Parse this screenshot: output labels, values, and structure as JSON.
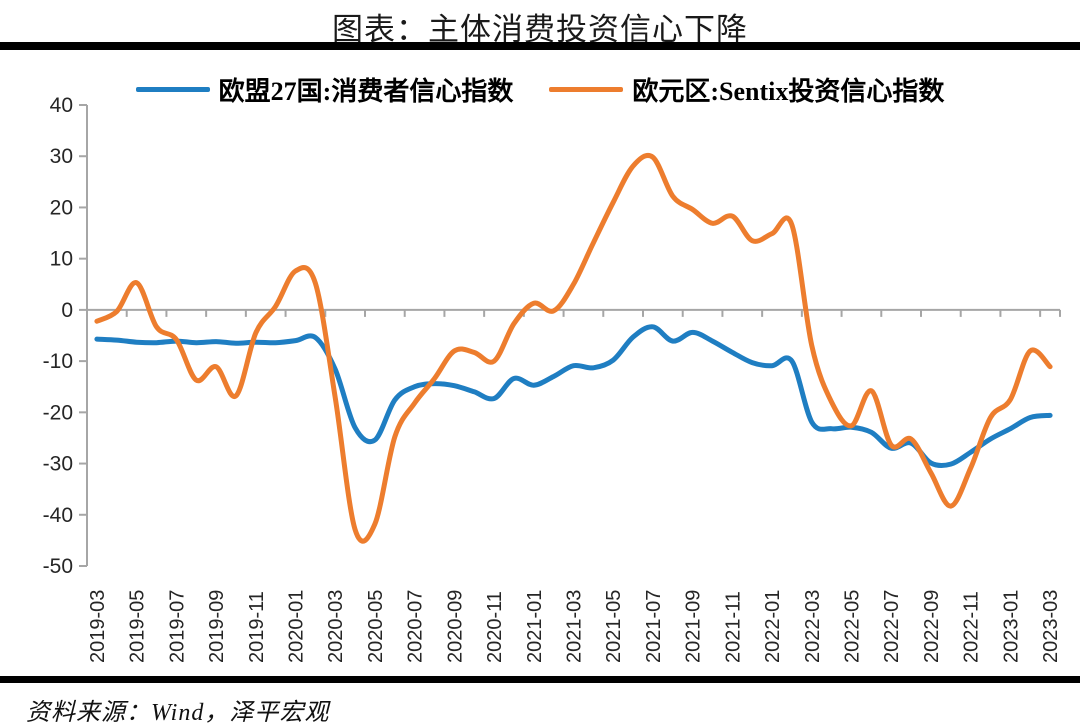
{
  "title": "图表：主体消费投资信心下降",
  "source": "资料来源：Wind，泽平宏观",
  "legend": [
    {
      "label": "欧盟27国:消费者信心指数",
      "color": "#1F7EC2"
    },
    {
      "label": "欧元区:Sentix投资信心指数",
      "color": "#ED7D2E"
    }
  ],
  "colors": {
    "axis": "#A6A6A6",
    "tick_label": "#262626",
    "divider": "#000000"
  },
  "chart_data": {
    "type": "line",
    "title": "图表：主体消费投资信心下降",
    "xlabel": "",
    "ylabel": "",
    "ylim": [
      -50,
      40
    ],
    "ytick_step": 10,
    "ytick_labels": [
      "40",
      "30",
      "20",
      "10",
      "0",
      "-10",
      "-20",
      "-30",
      "-40",
      "-50"
    ],
    "grid": "zero-line-only",
    "legend_position": "top",
    "smoothed": true,
    "x": [
      "2019-03",
      "2019-04",
      "2019-05",
      "2019-06",
      "2019-07",
      "2019-08",
      "2019-09",
      "2019-10",
      "2019-11",
      "2019-12",
      "2020-01",
      "2020-02",
      "2020-03",
      "2020-04",
      "2020-05",
      "2020-06",
      "2020-07",
      "2020-08",
      "2020-09",
      "2020-10",
      "2020-11",
      "2020-12",
      "2021-01",
      "2021-02",
      "2021-03",
      "2021-04",
      "2021-05",
      "2021-06",
      "2021-07",
      "2021-08",
      "2021-09",
      "2021-10",
      "2021-11",
      "2021-12",
      "2022-01",
      "2022-02",
      "2022-03",
      "2022-04",
      "2022-05",
      "2022-06",
      "2022-07",
      "2022-08",
      "2022-09",
      "2022-10",
      "2022-11",
      "2022-12",
      "2023-01",
      "2023-02",
      "2023-03"
    ],
    "xtick_labels": [
      "2019-03",
      "2019-05",
      "2019-07",
      "2019-09",
      "2019-11",
      "2020-01",
      "2020-03",
      "2020-05",
      "2020-07",
      "2020-09",
      "2020-11",
      "2021-01",
      "2021-03",
      "2021-05",
      "2021-07",
      "2021-09",
      "2021-11",
      "2022-01",
      "2022-03",
      "2022-05",
      "2022-07",
      "2022-09",
      "2022-11",
      "2023-01",
      "2023-03"
    ],
    "series": [
      {
        "name": "欧盟27国:消费者信心指数",
        "color": "#1F7EC2",
        "values": [
          -5.7,
          -5.9,
          -6.3,
          -6.4,
          -6.1,
          -6.4,
          -6.2,
          -6.5,
          -6.3,
          -6.4,
          -6.0,
          -5.4,
          -11.6,
          -23.0,
          -25.4,
          -17.6,
          -15.0,
          -14.4,
          -14.8,
          -16.0,
          -17.3,
          -13.4,
          -14.7,
          -13.0,
          -10.9,
          -11.3,
          -9.8,
          -5.3,
          -3.3,
          -6.1,
          -4.4,
          -6.1,
          -8.3,
          -10.3,
          -10.9,
          -10.0,
          -21.9,
          -23.2,
          -22.9,
          -23.9,
          -27.0,
          -26.0,
          -29.9,
          -30.1,
          -27.8,
          -25.2,
          -23.2,
          -21.0,
          -20.6
        ]
      },
      {
        "name": "欧元区:Sentix投资信心指数",
        "color": "#ED7D2E",
        "values": [
          -2.2,
          -0.3,
          5.3,
          -3.3,
          -5.8,
          -13.7,
          -11.1,
          -16.8,
          -4.5,
          0.7,
          7.6,
          5.2,
          -17.1,
          -42.9,
          -41.8,
          -24.8,
          -18.2,
          -13.4,
          -8.0,
          -8.3,
          -10.0,
          -2.7,
          1.3,
          -0.2,
          5.0,
          13.1,
          21.0,
          28.1,
          29.8,
          22.2,
          19.6,
          16.9,
          18.3,
          13.5,
          14.9,
          16.6,
          -7.0,
          -18.0,
          -22.6,
          -15.8,
          -26.4,
          -25.2,
          -31.8,
          -38.3,
          -30.9,
          -21.0,
          -17.5,
          -8.0,
          -11.1
        ]
      }
    ]
  }
}
